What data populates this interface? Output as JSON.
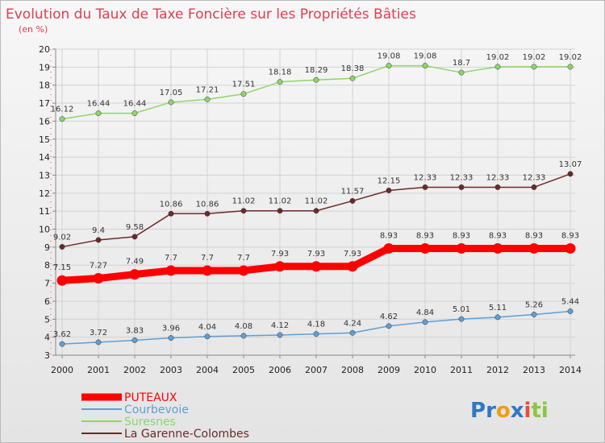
{
  "chart_data": {
    "type": "line",
    "title": "Evolution du Taux de Taxe Foncière sur les Propriétés Bâties",
    "subtitle": "(en %)",
    "xlabel": "",
    "ylabel": "",
    "ylim": [
      3,
      20
    ],
    "yticks": [
      3,
      4,
      5,
      6,
      7,
      8,
      9,
      10,
      11,
      12,
      13,
      14,
      15,
      16,
      17,
      18,
      19,
      20
    ],
    "x": [
      "2000",
      "2001",
      "2002",
      "2003",
      "2004",
      "2005",
      "2006",
      "2007",
      "2008",
      "2009",
      "2010",
      "2011",
      "2012",
      "2013",
      "2014"
    ],
    "grid": true,
    "legend_position": "bottom-left",
    "series": [
      {
        "name": "PUTEAUX",
        "color": "#ff0000",
        "values": [
          7.15,
          7.27,
          7.49,
          7.7,
          7.7,
          7.7,
          7.93,
          7.93,
          7.93,
          8.93,
          8.93,
          8.93,
          8.93,
          8.93,
          8.93
        ],
        "labels": [
          "7.15",
          "7.27",
          "7.49",
          "7.7",
          "7.7",
          "7.7",
          "7.93",
          "7.93",
          "7.93",
          "8.93",
          "8.93",
          "8.93",
          "8.93",
          "8.93",
          "8.93"
        ]
      },
      {
        "name": "Courbevoie",
        "color": "#5f9fd3",
        "values": [
          3.62,
          3.72,
          3.83,
          3.96,
          4.04,
          4.08,
          4.12,
          4.18,
          4.24,
          4.62,
          4.84,
          5.01,
          5.11,
          5.26,
          5.44
        ],
        "labels": [
          "3.62",
          "3.72",
          "3.83",
          "3.96",
          "4.04",
          "4.08",
          "4.12",
          "4.18",
          "4.24",
          "4.62",
          "4.84",
          "5.01",
          "5.11",
          "5.26",
          "5.44"
        ]
      },
      {
        "name": "Suresnes",
        "color": "#8ed56a",
        "values": [
          16.12,
          16.44,
          16.44,
          17.05,
          17.21,
          17.51,
          18.18,
          18.29,
          18.38,
          19.08,
          19.08,
          18.7,
          19.02,
          19.02,
          19.02
        ],
        "labels": [
          "16.12",
          "16.44",
          "16.44",
          "17.05",
          "17.21",
          "17.51",
          "18.18",
          "18.29",
          "18.38",
          "19.08",
          "19.08",
          "18.7",
          "19.02",
          "19.02",
          "19.02"
        ]
      },
      {
        "name": "La Garenne-Colombes",
        "color": "#6b2a2a",
        "values": [
          9.02,
          9.4,
          9.58,
          10.86,
          10.86,
          11.02,
          11.02,
          11.02,
          11.57,
          12.15,
          12.33,
          12.33,
          12.33,
          12.33,
          13.07
        ],
        "labels": [
          "9.02",
          "9.4",
          "9.58",
          "10.86",
          "10.86",
          "11.02",
          "11.02",
          "11.02",
          "11.57",
          "12.15",
          "12.33",
          "12.33",
          "12.33",
          "12.33",
          "13.07"
        ]
      }
    ]
  },
  "legend": {
    "items": [
      {
        "label": "PUTEAUX",
        "color": "#ff0000"
      },
      {
        "label": "Courbevoie",
        "color": "#5f9fd3"
      },
      {
        "label": "Suresnes",
        "color": "#8ed56a"
      },
      {
        "label": "La Garenne-Colombes",
        "color": "#6b2a2a"
      }
    ]
  },
  "logo": {
    "text": "Proxiti",
    "letters": [
      "P",
      "r",
      "o",
      "x",
      "i",
      "t",
      "i"
    ],
    "colors": [
      "#2e78c6",
      "#2e78c6",
      "#f39c12",
      "#2e78c6",
      "#e74c3c",
      "#8cc63f",
      "#8cc63f"
    ]
  }
}
